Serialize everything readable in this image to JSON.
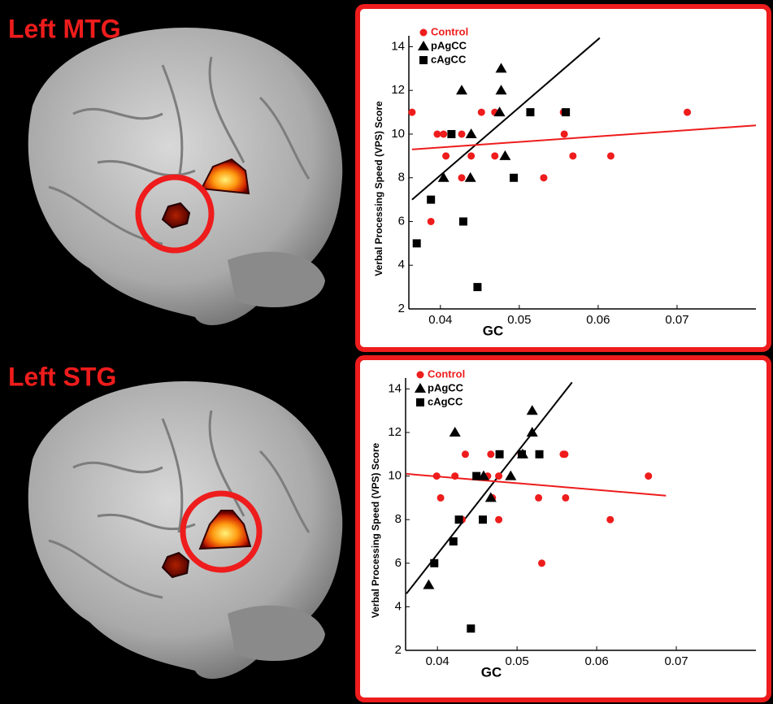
{
  "panel_labels": [
    "Left MTG",
    "Left STG"
  ],
  "chart_data": [
    {
      "type": "scatter",
      "x_label": "GC",
      "y_label": "Verbal Processing Speed (VPS) Score",
      "xlim": [
        0.036,
        0.08
      ],
      "xticks": [
        0.04,
        0.05,
        0.06,
        0.07
      ],
      "ylim": [
        2,
        14.5
      ],
      "yticks": [
        2,
        4,
        6,
        8,
        10,
        12,
        14
      ],
      "legend": "upper left",
      "series": [
        {
          "name": "Control",
          "color": "#ee1c1c",
          "marker": "circle",
          "x": [
            0.0364,
            0.0388,
            0.0396,
            0.0404,
            0.0407,
            0.0427,
            0.0427,
            0.0439,
            0.0452,
            0.0469,
            0.0469,
            0.0556,
            0.0557,
            0.0568,
            0.0531,
            0.0616,
            0.0713
          ],
          "values": [
            11,
            6,
            10,
            10,
            9,
            10,
            8,
            9,
            11,
            11,
            9,
            11,
            10,
            9,
            8,
            9,
            11
          ]
        },
        {
          "name": "pAgCC",
          "color": "#000000",
          "marker": "triangle",
          "x": [
            0.0427,
            0.0439,
            0.0404,
            0.0438,
            0.0477,
            0.0477,
            0.0475,
            0.0482
          ],
          "values": [
            12,
            10,
            8,
            8,
            13,
            12,
            11,
            9
          ]
        },
        {
          "name": "cAgCC",
          "color": "#000000",
          "marker": "square",
          "x": [
            0.037,
            0.0388,
            0.0414,
            0.0429,
            0.0447,
            0.0493,
            0.0514,
            0.0559
          ],
          "values": [
            5,
            7,
            10,
            6,
            3,
            8,
            11,
            11
          ]
        }
      ],
      "fit_lines": [
        {
          "color": "#000000",
          "x": [
            0.0364,
            0.0602
          ],
          "values": [
            7,
            14.4
          ]
        },
        {
          "color": "#ee1c1c",
          "x": [
            0.0364,
            0.08
          ],
          "values": [
            9.3,
            10.4
          ]
        }
      ]
    },
    {
      "type": "scatter",
      "x_label": "GC",
      "y_label": "Verbal Processing Speed (VPS) Score",
      "xlim": [
        0.036,
        0.08
      ],
      "xticks": [
        0.04,
        0.05,
        0.06,
        0.07
      ],
      "ylim": [
        2,
        14.5
      ],
      "yticks": [
        2,
        4,
        6,
        8,
        10,
        12,
        14
      ],
      "legend": "upper left",
      "series": [
        {
          "name": "Control",
          "color": "#ee1c1c",
          "marker": "circle",
          "x": [
            0.0399,
            0.0404,
            0.0435,
            0.0422,
            0.0431,
            0.0467,
            0.0463,
            0.0469,
            0.0477,
            0.0477,
            0.0505,
            0.0527,
            0.0558,
            0.056,
            0.0561,
            0.0531,
            0.0617,
            0.0665
          ],
          "values": [
            10,
            9,
            11,
            10,
            8,
            11,
            10,
            9,
            10,
            8,
            11,
            9,
            11,
            11,
            9,
            6,
            8,
            10
          ]
        },
        {
          "name": "pAgCC",
          "color": "#000000",
          "marker": "triangle",
          "x": [
            0.0389,
            0.0422,
            0.0458,
            0.0467,
            0.0492,
            0.0519,
            0.0519,
            0.0507
          ],
          "values": [
            5,
            12,
            10,
            9,
            10,
            13,
            12,
            11
          ]
        },
        {
          "name": "cAgCC",
          "color": "#000000",
          "marker": "square",
          "x": [
            0.0396,
            0.042,
            0.0427,
            0.0449,
            0.0457,
            0.0478,
            0.0506,
            0.0528,
            0.0442
          ],
          "values": [
            6,
            7,
            8,
            10,
            8,
            11,
            11,
            11,
            3
          ]
        }
      ],
      "fit_lines": [
        {
          "color": "#000000",
          "x": [
            0.0361,
            0.0569
          ],
          "values": [
            4.6,
            14.3
          ]
        },
        {
          "color": "#ee1c1c",
          "x": [
            0.0361,
            0.0687
          ],
          "values": [
            10.1,
            9.1
          ]
        }
      ]
    }
  ]
}
